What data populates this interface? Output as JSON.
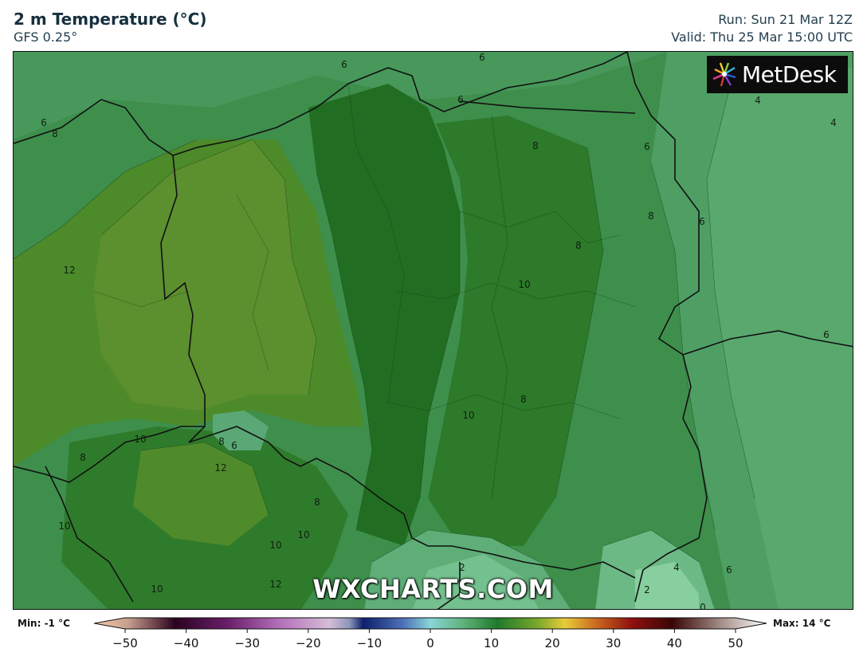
{
  "header": {
    "title": "2 m Temperature (°C)",
    "model": "GFS 0.25°",
    "run": "Run: Sun 21 Mar 12Z",
    "valid": "Valid: Thu 25 Mar 15:00 UTC"
  },
  "logo": {
    "text": "MetDesk"
  },
  "watermark": "WXCHARTS.COM",
  "contour_labels": [
    "6",
    "6",
    "6",
    "8",
    "4",
    "4",
    "8",
    "6",
    "8",
    "6",
    "8",
    "12",
    "10",
    "6",
    "10",
    "8",
    "10",
    "8",
    "6",
    "12",
    "10",
    "8",
    "10",
    "10",
    "12",
    "10",
    "8",
    "6",
    "2",
    "4",
    "6",
    "2",
    "0"
  ],
  "colorbar": {
    "min_label": "Min: -1 °C",
    "max_label": "Max: 14 °C",
    "ticks": [
      "−50",
      "−40",
      "−30",
      "−20",
      "−10",
      "0",
      "10",
      "20",
      "30",
      "40",
      "50"
    ],
    "colors": {
      "cold_end": "#f7c8a8",
      "deep": "#2a0320",
      "purple": "#9b3f9a",
      "lilac": "#c7a2cc",
      "navy": "#0d1f6e",
      "blue": "#4f72b8",
      "cyan": "#88d6d6",
      "green_light": "#5fb07a",
      "green": "#1f7a2a",
      "olive": "#7aa82c",
      "yellow": "#e8cc3a",
      "orange": "#c8631e",
      "red": "#8e1010",
      "dark": "#3a0606",
      "warm_end": "#ffffff"
    }
  },
  "map_colors": {
    "base": "#3e8f4c",
    "warm_olive": "#5c8f2e",
    "olive": "#4d8a2a",
    "dark_green": "#2c7a2a",
    "deep_green": "#1f6e20",
    "mid_green": "#3a8a40",
    "cool_green": "#52a26a",
    "cold_green": "#6cbb8c",
    "border": "#111111"
  }
}
